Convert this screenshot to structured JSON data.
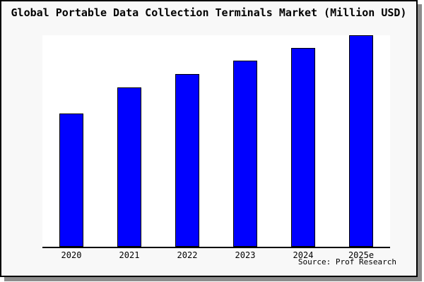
{
  "figure": {
    "title": "Global Portable Data Collection Terminals Market (Million USD)",
    "source": "Source: Prof Research"
  },
  "chart_data": {
    "type": "bar",
    "title": "Global Portable Data Collection Terminals Market (Million USD)",
    "categories": [
      "2020",
      "2021",
      "2022",
      "2023",
      "2024",
      "2025e"
    ],
    "values": [
      62.9,
      75.3,
      81.6,
      88.0,
      94.0,
      100
    ],
    "xlabel": "",
    "ylabel": "",
    "ylim": [
      0,
      100
    ],
    "grid": false,
    "legend": false,
    "y_axis_labels_visible": false,
    "value_note": "No y-axis scale is shown in the figure; values are relative bar heights normalized so that 2025e = 100.",
    "annotations": [
      "Source: Prof Research"
    ],
    "colors": {
      "bar_fill": "#0000ff",
      "bar_border": "#000000",
      "plot_bg": "#ffffff",
      "figure_bg": "#f8f8f8",
      "frame_border": "#000000",
      "frame_shadow": "#8c8c8c",
      "text": "#000000"
    }
  }
}
